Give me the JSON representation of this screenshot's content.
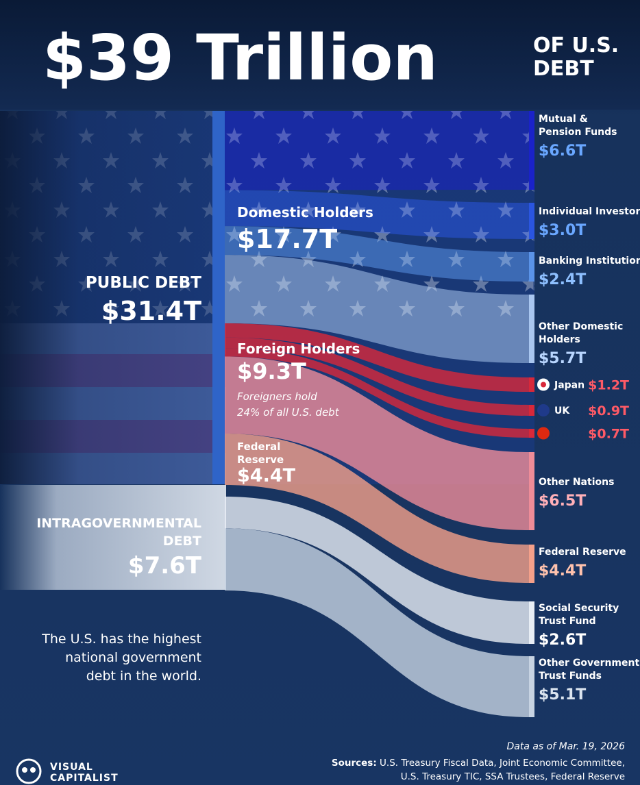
{
  "title": {
    "main": "$39 Trillion",
    "suffix_line1": "OF U.S.",
    "suffix_line2": "DEBT"
  },
  "note": {
    "line1": "The U.S. has the highest",
    "line2": "national government",
    "line3": "debt in the world."
  },
  "footer": {
    "date": "Data as of Mar. 19, 2026",
    "sources_label": "Sources:",
    "sources_line1": "U.S. Treasury Fiscal Data, Joint Economic Committee,",
    "sources_line2": "U.S. Treasury TIC, SSA Trustees, Federal Reserve",
    "brand_line1": "VISUAL",
    "brand_line2": "CAPITALIST"
  },
  "colors": {
    "background": "#17325c",
    "domestic_dark": "#1a22c9",
    "domestic_mid": "#2a55e0",
    "domestic_light": "#5a93e8",
    "foreign_red": "#d8283a",
    "foreign_pink": "#ee8c98",
    "fed_salmon": "#f4a08a",
    "intragov_white": "#e8eef5",
    "value_blue": "#6aa7ff",
    "value_red": "#ff5a66",
    "value_pink": "#ffb0b8"
  },
  "chart_data": {
    "type": "sankey",
    "units": "trillion USD",
    "total": 39,
    "sources": [
      {
        "id": "public",
        "name_lines": [
          "PUBLIC DEBT"
        ],
        "value_label": "$31.4T",
        "value": 31.4
      },
      {
        "id": "intragov",
        "name_lines": [
          "INTRAGOVERNMENTAL",
          "DEBT"
        ],
        "value_label": "$7.6T",
        "value": 7.6
      }
    ],
    "groups": [
      {
        "id": "domestic",
        "source": "public",
        "name": "Domestic Holders",
        "value_label": "$17.7T",
        "value": 17.7
      },
      {
        "id": "foreign",
        "source": "public",
        "name": "Foreign Holders",
        "value_label": "$9.3T",
        "value": 9.3,
        "note_lines": [
          "Foreigners hold",
          "24% of all U.S. debt"
        ]
      },
      {
        "id": "fed",
        "source": "public",
        "name_lines": [
          "Federal",
          "Reserve"
        ],
        "value_label": "$4.4T",
        "value": 4.4
      }
    ],
    "holders": [
      {
        "id": "mutual",
        "group": "domestic",
        "name_lines": [
          "Mutual &",
          "Pension Funds"
        ],
        "value_label": "$6.6T",
        "value": 6.6
      },
      {
        "id": "individual",
        "group": "domestic",
        "name_lines": [
          "Individual Investors"
        ],
        "value_label": "$3.0T",
        "value": 3.0
      },
      {
        "id": "banking",
        "group": "domestic",
        "name_lines": [
          "Banking Institutions"
        ],
        "value_label": "$2.4T",
        "value": 2.4
      },
      {
        "id": "otherdom",
        "group": "domestic",
        "name_lines": [
          "Other Domestic",
          "Holders"
        ],
        "value_label": "$5.7T",
        "value": 5.7
      },
      {
        "id": "japan",
        "group": "foreign",
        "name": "Japan",
        "value_label": "$1.2T",
        "value": 1.2,
        "flag": "japan-flag-icon"
      },
      {
        "id": "uk",
        "group": "foreign",
        "name": "UK",
        "value_label": "$0.9T",
        "value": 0.9,
        "flag": "uk-flag-icon"
      },
      {
        "id": "china",
        "group": "foreign",
        "name": "",
        "value_label": "$0.7T",
        "value": 0.7,
        "flag": "china-flag-icon"
      },
      {
        "id": "othernations",
        "group": "foreign",
        "name_lines": [
          "Other Nations"
        ],
        "value_label": "$6.5T",
        "value": 6.5
      },
      {
        "id": "fedres",
        "group": "fed",
        "name_lines": [
          "Federal Reserve"
        ],
        "value_label": "$4.4T",
        "value": 4.4
      },
      {
        "id": "socsec",
        "group": "intragov",
        "name_lines": [
          "Social Security",
          "Trust Fund"
        ],
        "value_label": "$2.6T",
        "value": 2.6
      },
      {
        "id": "othergov",
        "group": "intragov",
        "name_lines": [
          "Other Government",
          "Trust Funds"
        ],
        "value_label": "$5.1T",
        "value": 5.1
      }
    ]
  }
}
